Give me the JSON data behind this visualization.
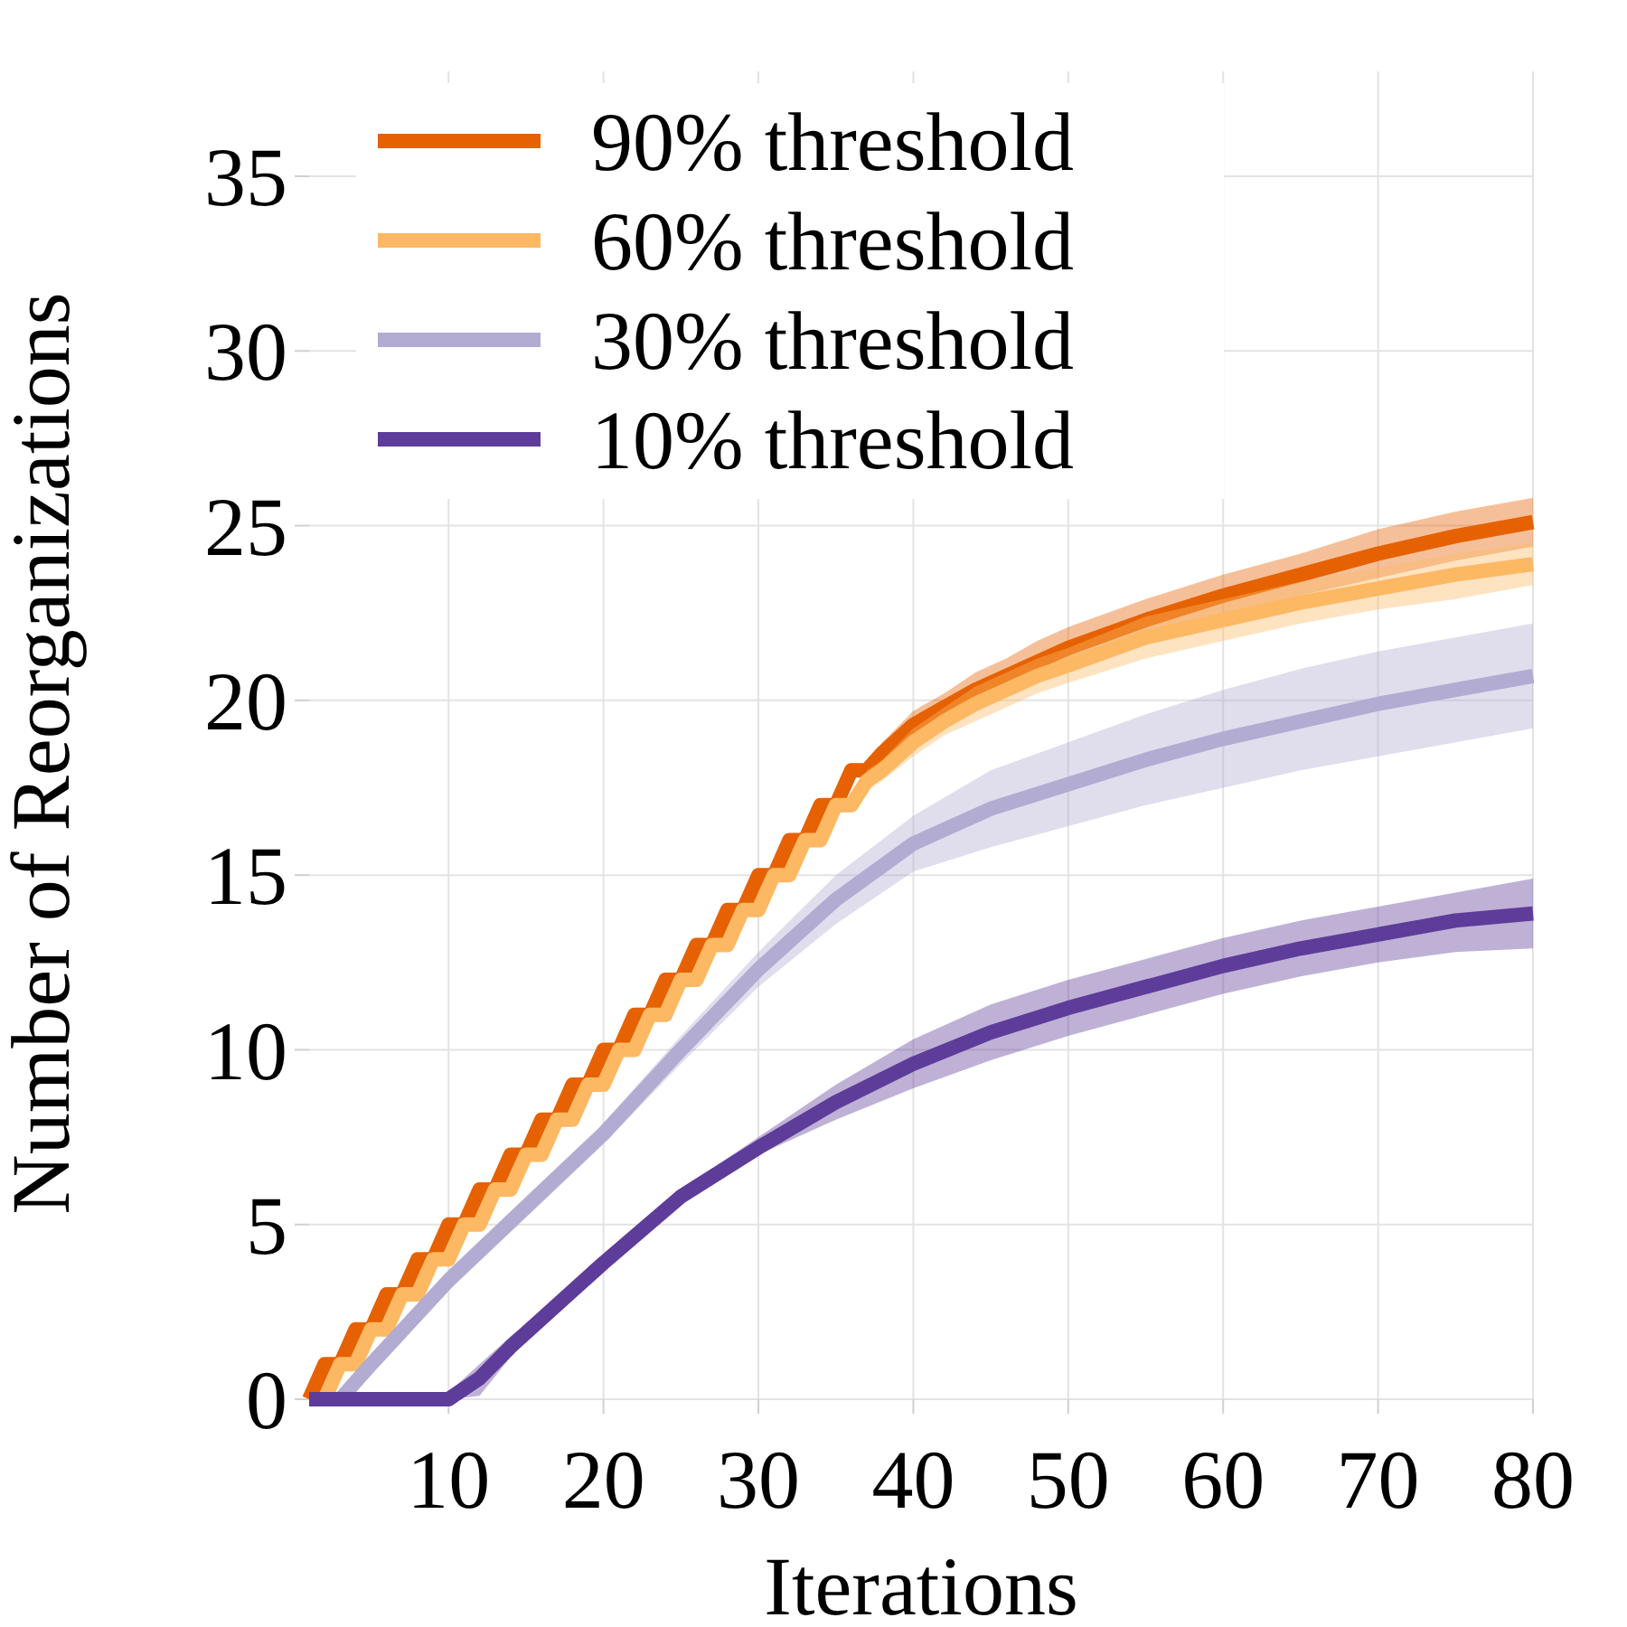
{
  "chart_data": {
    "type": "line",
    "xlabel": "Iterations",
    "ylabel": "Number of Reorganizations",
    "xlim": [
      1,
      80
    ],
    "xticks": [
      10,
      20,
      30,
      40,
      50,
      60,
      70,
      80
    ],
    "ylim": [
      0,
      38
    ],
    "yticks": [
      0,
      5,
      10,
      15,
      20,
      25,
      30,
      35
    ],
    "grid": true,
    "legend": "top left",
    "marker": "none",
    "line_style": "solid",
    "series": [
      {
        "name": "90% threshold",
        "color": "#e66101",
        "x": [
          1,
          2,
          3,
          4,
          5,
          6,
          7,
          8,
          9,
          10,
          11,
          12,
          13,
          14,
          15,
          16,
          17,
          18,
          19,
          20,
          21,
          22,
          23,
          24,
          25,
          26,
          27,
          28,
          29,
          30,
          31,
          32,
          33,
          34,
          35,
          36,
          37,
          38,
          40,
          42,
          44,
          46,
          48,
          50,
          55,
          60,
          65,
          70,
          75,
          80
        ],
        "values": [
          0,
          1,
          1,
          2,
          2,
          3,
          3,
          4,
          4,
          5,
          5,
          6,
          6,
          7,
          7,
          8,
          8,
          9,
          9,
          10,
          10,
          11,
          11,
          12,
          12,
          13,
          13,
          14,
          14,
          15,
          15,
          16,
          16,
          17,
          17,
          18,
          18,
          18.5,
          19.3,
          19.8,
          20.3,
          20.7,
          21.1,
          21.5,
          22.3,
          23,
          23.6,
          24.2,
          24.7,
          25.1
        ],
        "lower": [
          0,
          0.9,
          0.9,
          1.9,
          1.9,
          2.9,
          2.9,
          3.9,
          3.9,
          4.9,
          4.9,
          5.9,
          5.9,
          6.9,
          6.9,
          7.9,
          7.9,
          8.9,
          8.9,
          9.9,
          9.9,
          10.9,
          10.9,
          11.9,
          11.9,
          12.9,
          12.9,
          13.9,
          13.9,
          14.9,
          14.8,
          15.8,
          15.8,
          16.8,
          16.8,
          17.8,
          17.8,
          18.2,
          18.9,
          19.4,
          19.8,
          20.2,
          20.5,
          20.9,
          21.7,
          22.4,
          23,
          23.5,
          24,
          24.4
        ],
        "upper": [
          0.1,
          1.1,
          1.1,
          2.1,
          2.1,
          3.1,
          3.1,
          4.1,
          4.1,
          5.1,
          5.1,
          6.1,
          6.1,
          7.1,
          7.1,
          8.1,
          8.1,
          9.1,
          9.1,
          10.1,
          10.1,
          11.1,
          11.1,
          12.1,
          12.1,
          13.1,
          13.1,
          14.1,
          14.1,
          15.1,
          15.2,
          16.2,
          16.2,
          17.2,
          17.2,
          18.2,
          18.2,
          18.8,
          19.7,
          20.2,
          20.8,
          21.2,
          21.7,
          22.1,
          22.9,
          23.6,
          24.2,
          24.9,
          25.4,
          25.8
        ]
      },
      {
        "name": "60% threshold",
        "color": "#fdb863",
        "x": [
          1,
          2,
          3,
          4,
          5,
          6,
          7,
          8,
          9,
          10,
          11,
          12,
          13,
          14,
          15,
          16,
          17,
          18,
          19,
          20,
          21,
          22,
          23,
          24,
          25,
          26,
          27,
          28,
          29,
          30,
          31,
          32,
          33,
          34,
          35,
          36,
          37,
          38,
          40,
          42,
          44,
          46,
          48,
          50,
          55,
          60,
          65,
          70,
          75,
          80
        ],
        "values": [
          0,
          0,
          1,
          1,
          2,
          2,
          3,
          3,
          4,
          4,
          5,
          5,
          6,
          6,
          7,
          7,
          8,
          8,
          9,
          9,
          10,
          10,
          11,
          11,
          12,
          12,
          13,
          13,
          14,
          14,
          15,
          15,
          16,
          16,
          17,
          17,
          17.7,
          18,
          18.8,
          19.4,
          19.9,
          20.3,
          20.7,
          21,
          21.8,
          22.3,
          22.8,
          23.2,
          23.6,
          23.9
        ],
        "lower": [
          0,
          0,
          0.9,
          0.9,
          1.9,
          1.9,
          2.9,
          2.9,
          3.9,
          3.9,
          4.9,
          4.9,
          5.9,
          5.9,
          6.9,
          6.9,
          7.9,
          7.9,
          8.9,
          8.9,
          9.9,
          9.9,
          10.9,
          10.9,
          11.9,
          11.9,
          12.9,
          12.9,
          13.9,
          13.9,
          14.8,
          14.8,
          15.8,
          15.8,
          16.8,
          16.8,
          17.4,
          17.7,
          18.4,
          19,
          19.4,
          19.8,
          20.2,
          20.5,
          21.2,
          21.7,
          22.2,
          22.6,
          22.9,
          23.3
        ],
        "upper": [
          0.1,
          0.1,
          1.1,
          1.1,
          2.1,
          2.1,
          3.1,
          3.1,
          4.1,
          4.1,
          5.1,
          5.1,
          6.1,
          6.1,
          7.1,
          7.1,
          8.1,
          8.1,
          9.1,
          9.1,
          10.1,
          10.1,
          11.1,
          11.1,
          12.1,
          12.1,
          13.1,
          13.1,
          14.1,
          14.1,
          15.2,
          15.2,
          16.2,
          16.2,
          17.2,
          17.2,
          18,
          18.3,
          19.2,
          19.8,
          20.4,
          20.8,
          21.2,
          21.5,
          22.4,
          22.9,
          23.4,
          23.8,
          24.2,
          24.5
        ]
      },
      {
        "name": "30% threshold",
        "color": "#b2abd2",
        "x": [
          1,
          3,
          5,
          10,
          15,
          20,
          25,
          30,
          35,
          40,
          45,
          50,
          55,
          60,
          65,
          70,
          75,
          80
        ],
        "values": [
          0,
          0,
          1,
          3.4,
          5.5,
          7.6,
          10,
          12.3,
          14.3,
          15.9,
          16.9,
          17.6,
          18.3,
          18.9,
          19.4,
          19.9,
          20.3,
          20.7
        ],
        "lower": [
          0,
          0,
          0.7,
          3.1,
          5.2,
          7.3,
          9.6,
          11.8,
          13.6,
          15.1,
          15.8,
          16.4,
          17,
          17.5,
          18,
          18.4,
          18.8,
          19.2
        ],
        "upper": [
          0,
          0.1,
          1.3,
          3.7,
          5.8,
          7.9,
          10.4,
          12.8,
          15,
          16.7,
          18,
          18.8,
          19.6,
          20.3,
          20.9,
          21.4,
          21.8,
          22.2
        ]
      },
      {
        "name": "10% threshold",
        "color": "#5e3c99",
        "x": [
          1,
          10,
          12,
          14,
          16,
          18,
          20,
          25,
          30,
          35,
          40,
          45,
          50,
          55,
          60,
          65,
          70,
          75,
          80
        ],
        "values": [
          0,
          0,
          0.6,
          1.5,
          2.3,
          3.1,
          3.9,
          5.8,
          7.2,
          8.5,
          9.6,
          10.5,
          11.2,
          11.8,
          12.4,
          12.9,
          13.3,
          13.7,
          13.9
        ],
        "lower": [
          0,
          0,
          0.1,
          1.2,
          2.1,
          2.9,
          3.7,
          5.6,
          7,
          8,
          8.9,
          9.7,
          10.4,
          11,
          11.6,
          12.1,
          12.5,
          12.8,
          12.9
        ],
        "upper": [
          0,
          0.2,
          1,
          1.8,
          2.5,
          3.3,
          4.1,
          6,
          7.5,
          9,
          10.3,
          11.3,
          12,
          12.6,
          13.2,
          13.7,
          14.1,
          14.5,
          14.9
        ]
      }
    ]
  }
}
